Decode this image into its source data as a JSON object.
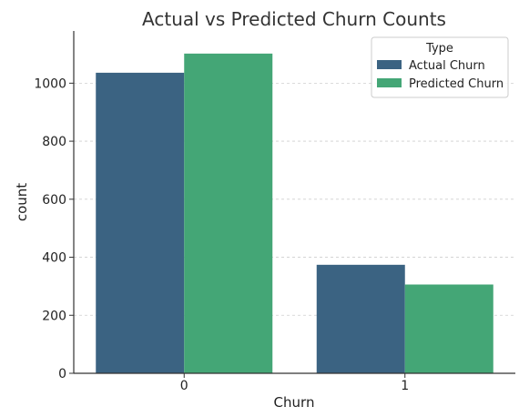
{
  "chart_data": {
    "type": "bar",
    "title": "Actual vs Predicted Churn Counts",
    "xlabel": "Churn",
    "ylabel": "count",
    "categories": [
      "0",
      "1"
    ],
    "series": [
      {
        "name": "Actual Churn",
        "values": [
          1036,
          374
        ],
        "color": "#3b6382"
      },
      {
        "name": "Predicted Churn",
        "values": [
          1102,
          306
        ],
        "color": "#44a676"
      }
    ],
    "ylim": [
      0,
      1180
    ],
    "yticks": [
      0,
      200,
      400,
      600,
      800,
      1000
    ],
    "grid": true,
    "legend": {
      "title": "Type",
      "position": "top-right"
    }
  }
}
